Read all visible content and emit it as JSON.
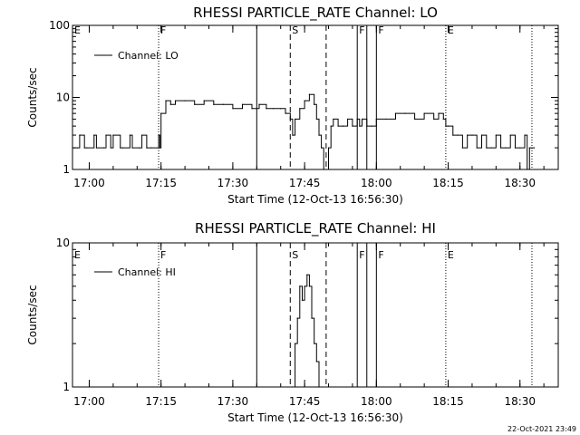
{
  "stamp": "22-Oct-2021 23:49",
  "chart_data": [
    {
      "type": "line",
      "title": "RHESSI PARTICLE_RATE Channel: LO",
      "xlabel": "Start Time (12-Oct-13 16:56:30)",
      "ylabel": "Counts/sec",
      "yscale": "log",
      "ylim": [
        1,
        100
      ],
      "yticks": [
        "1",
        "10",
        "100"
      ],
      "xlim": [
        "16:56:30",
        "18:38:00"
      ],
      "xticks": [
        "17:00",
        "17:15",
        "17:30",
        "17:45",
        "18:00",
        "18:15",
        "18:30"
      ],
      "legend": {
        "label": "Channel: LO",
        "position": "top-left"
      },
      "markers": [
        {
          "time": "16:56:30",
          "label": "E",
          "style": "dotted"
        },
        {
          "time": "17:14:30",
          "label": "F",
          "style": "dotted"
        },
        {
          "time": "17:35:00",
          "label": "",
          "style": "solid"
        },
        {
          "time": "17:42:00",
          "label": "S",
          "style": "dashed"
        },
        {
          "time": "17:49:30",
          "label": "",
          "style": "dashed"
        },
        {
          "time": "17:56:00",
          "label": "F",
          "style": "solid"
        },
        {
          "time": "17:58:00",
          "label": "",
          "style": "solid"
        },
        {
          "time": "18:00:00",
          "label": "F",
          "style": "solid"
        },
        {
          "time": "18:14:30",
          "label": "E",
          "style": "dotted"
        },
        {
          "time": "18:32:30",
          "label": "",
          "style": "dotted"
        }
      ],
      "series": [
        {
          "name": "Channel: LO",
          "x": [
            "16:56:30",
            "16:57:30",
            "16:58:00",
            "16:59:00",
            "16:59:30",
            "17:01:00",
            "17:01:30",
            "17:03:00",
            "17:03:30",
            "17:04:30",
            "17:05:00",
            "17:06:30",
            "17:07:00",
            "17:08:30",
            "17:09:00",
            "17:10:30",
            "17:11:00",
            "17:12:00",
            "17:13:00",
            "17:14:30",
            "17:14:45",
            "17:15:00",
            "17:16:00",
            "17:17:00",
            "17:18:00",
            "17:20:00",
            "17:22:00",
            "17:24:00",
            "17:26:00",
            "17:28:00",
            "17:30:00",
            "17:32:00",
            "17:34:00",
            "17:35:30",
            "17:37:00",
            "17:38:30",
            "17:40:00",
            "17:41:00",
            "17:42:00",
            "17:42:30",
            "17:43:00",
            "17:44:00",
            "17:45:00",
            "17:46:00",
            "17:47:00",
            "17:47:30",
            "17:48:00",
            "17:48:30",
            "17:49:00",
            "17:49:30",
            "17:50:00",
            "17:50:30",
            "17:51:00",
            "17:52:00",
            "17:53:00",
            "17:54:00",
            "17:55:00",
            "17:56:00",
            "17:56:30",
            "17:57:00",
            "17:58:00",
            "17:59:00",
            "18:00:00",
            "18:02:00",
            "18:04:00",
            "18:06:00",
            "18:08:00",
            "18:10:00",
            "18:12:00",
            "18:13:00",
            "18:14:00",
            "18:14:30",
            "18:15:00",
            "18:16:00",
            "18:17:00",
            "18:18:00",
            "18:19:00",
            "18:20:00",
            "18:21:00",
            "18:22:00",
            "18:23:00",
            "18:24:00",
            "18:25:00",
            "18:26:00",
            "18:27:00",
            "18:28:00",
            "18:29:00",
            "18:30:00",
            "18:31:00",
            "18:31:30",
            "18:32:00",
            "18:33:00"
          ],
          "y": [
            2,
            2,
            3,
            2,
            2,
            3,
            2,
            2,
            3,
            2,
            3,
            2,
            2,
            3,
            2,
            2,
            3,
            2,
            2,
            3,
            2,
            6,
            9,
            8,
            9,
            9,
            8,
            9,
            8,
            8,
            7,
            8,
            7,
            8,
            7,
            7,
            7,
            6,
            5,
            3,
            5,
            7,
            9,
            11,
            8,
            5,
            3,
            2,
            1,
            1,
            2,
            4,
            5,
            4,
            4,
            5,
            4,
            5,
            4,
            5,
            4,
            4,
            5,
            5,
            6,
            6,
            5,
            6,
            5,
            6,
            5,
            4,
            4,
            3,
            3,
            2,
            3,
            3,
            2,
            3,
            2,
            2,
            3,
            2,
            2,
            3,
            2,
            2,
            3,
            1,
            2,
            2
          ]
        }
      ]
    },
    {
      "type": "line",
      "title": "RHESSI PARTICLE_RATE Channel: HI",
      "xlabel": "Start Time (12-Oct-13 16:56:30)",
      "ylabel": "Counts/sec",
      "yscale": "log",
      "ylim": [
        1,
        10
      ],
      "yticks": [
        "1",
        "10"
      ],
      "xlim": [
        "16:56:30",
        "18:38:00"
      ],
      "xticks": [
        "17:00",
        "17:15",
        "17:30",
        "17:45",
        "18:00",
        "18:15",
        "18:30"
      ],
      "legend": {
        "label": "Channel: HI",
        "position": "top-left"
      },
      "markers": [
        {
          "time": "16:56:30",
          "label": "E",
          "style": "dotted"
        },
        {
          "time": "17:14:30",
          "label": "F",
          "style": "dotted"
        },
        {
          "time": "17:35:00",
          "label": "",
          "style": "solid"
        },
        {
          "time": "17:42:00",
          "label": "S",
          "style": "dashed"
        },
        {
          "time": "17:49:30",
          "label": "",
          "style": "dashed"
        },
        {
          "time": "17:56:00",
          "label": "F",
          "style": "solid"
        },
        {
          "time": "17:58:00",
          "label": "",
          "style": "solid"
        },
        {
          "time": "18:00:00",
          "label": "F",
          "style": "solid"
        },
        {
          "time": "18:14:30",
          "label": "E",
          "style": "dotted"
        },
        {
          "time": "18:32:30",
          "label": "",
          "style": "dotted"
        }
      ],
      "series": [
        {
          "name": "Channel: HI",
          "x": [
            "17:42:30",
            "17:43:00",
            "17:43:30",
            "17:44:00",
            "17:44:30",
            "17:45:00",
            "17:45:30",
            "17:46:00",
            "17:46:30",
            "17:47:00",
            "17:47:30",
            "17:48:00"
          ],
          "y": [
            1,
            2,
            3,
            5,
            4,
            5,
            6,
            5,
            3,
            2,
            1.5,
            1
          ]
        }
      ]
    }
  ]
}
